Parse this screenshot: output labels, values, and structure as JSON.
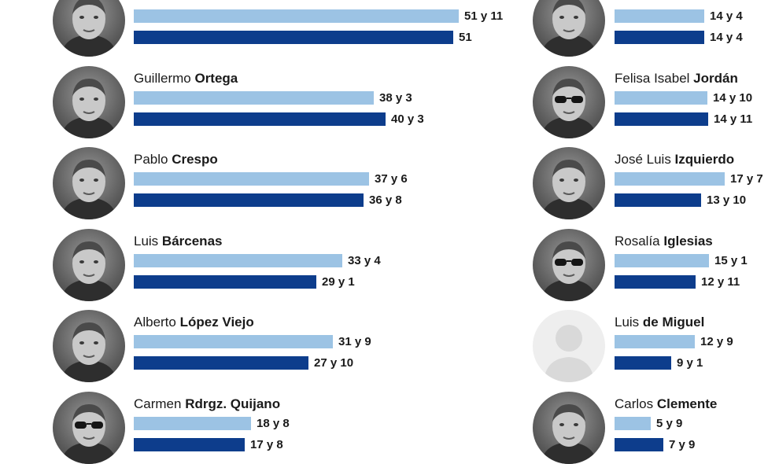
{
  "chart_data": {
    "type": "bar",
    "orientation": "horizontal",
    "series_colors": [
      "#9cc3e4",
      "#0d3d8c"
    ],
    "max_value_years": 52,
    "columns": [
      {
        "people": [
          {
            "first": "",
            "last": "",
            "values": [
              "51 y 11",
              "51"
            ],
            "years": [
              51.9,
              51.0
            ],
            "photo": "portrait"
          },
          {
            "first": "Guillermo",
            "last": "Ortega",
            "values": [
              "38 y 3",
              "40 y 3"
            ],
            "years": [
              38.25,
              40.25
            ],
            "photo": "portrait"
          },
          {
            "first": "Pablo",
            "last": "Crespo",
            "values": [
              "37 y 6",
              "36 y 8"
            ],
            "years": [
              37.5,
              36.67
            ],
            "photo": "portrait"
          },
          {
            "first": "Luis",
            "last": "Bárcenas",
            "values": [
              "33 y 4",
              "29 y 1"
            ],
            "years": [
              33.33,
              29.08
            ],
            "photo": "portrait"
          },
          {
            "first": "Alberto",
            "last": "López Viejo",
            "values": [
              "31 y 9",
              "27 y 10"
            ],
            "years": [
              31.75,
              27.83
            ],
            "photo": "portrait"
          },
          {
            "first": "Carmen",
            "last": "Rdrgz. Quijano",
            "values": [
              "18 y 8",
              "17 y 8"
            ],
            "years": [
              18.67,
              17.67
            ],
            "photo": "portrait-sunglasses"
          }
        ]
      },
      {
        "people": [
          {
            "first": "",
            "last": "",
            "values": [
              "14 y 4",
              "14 y 4"
            ],
            "years": [
              14.33,
              14.33
            ],
            "photo": "portrait"
          },
          {
            "first": "Felisa Isabel",
            "last": "Jordán",
            "values": [
              "14 y 10",
              "14 y 11"
            ],
            "years": [
              14.83,
              14.92
            ],
            "photo": "portrait-sunglasses"
          },
          {
            "first": "José Luis",
            "last": "Izquierdo",
            "values": [
              "17 y 7",
              "13 y 10"
            ],
            "years": [
              17.58,
              13.83
            ],
            "photo": "portrait"
          },
          {
            "first": "Rosalía",
            "last": "Iglesias",
            "values": [
              "15 y 1",
              "12 y 11"
            ],
            "years": [
              15.08,
              12.92
            ],
            "photo": "portrait-sunglasses"
          },
          {
            "first": "Luis",
            "last": "de Miguel",
            "values": [
              "12 y 9",
              "9 y 1"
            ],
            "years": [
              12.75,
              9.08
            ],
            "photo": "silhouette"
          },
          {
            "first": "Carlos",
            "last": "Clemente",
            "values": [
              "5 y 9",
              "7 y 9"
            ],
            "years": [
              5.75,
              7.75
            ],
            "photo": "portrait"
          }
        ]
      }
    ]
  }
}
